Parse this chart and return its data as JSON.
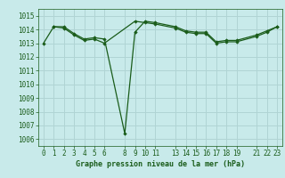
{
  "title": "Graphe pression niveau de la mer (hPa)",
  "bg_color": "#c8eaea",
  "grid_color": "#b0d4d4",
  "line_color": "#1a5c1a",
  "marker_color": "#1a5c1a",
  "xlim": [
    -0.5,
    23.5
  ],
  "ylim": [
    1005.5,
    1015.5
  ],
  "xticks": [
    0,
    1,
    2,
    3,
    4,
    5,
    6,
    8,
    9,
    10,
    11,
    13,
    14,
    15,
    16,
    17,
    18,
    19,
    21,
    22,
    23
  ],
  "yticks": [
    1006,
    1007,
    1008,
    1009,
    1010,
    1011,
    1012,
    1013,
    1014,
    1015
  ],
  "series": [
    {
      "x": [
        0,
        1,
        2,
        3,
        4,
        5,
        6,
        8,
        9,
        10,
        11,
        13,
        14,
        15,
        16,
        17,
        18,
        19,
        21,
        22,
        23
      ],
      "y": [
        1013.0,
        1014.2,
        1014.2,
        1013.7,
        1013.3,
        1013.4,
        1013.3,
        1006.4,
        1013.8,
        1014.6,
        1014.5,
        1014.2,
        1013.9,
        1013.8,
        1013.8,
        1013.1,
        1013.2,
        1013.2,
        1013.6,
        1013.9,
        1014.2
      ]
    },
    {
      "x": [
        1,
        2,
        3,
        4,
        5,
        6,
        9,
        10,
        11,
        13,
        14,
        15,
        16,
        17,
        18,
        19,
        21,
        22,
        23
      ],
      "y": [
        1014.2,
        1014.1,
        1013.6,
        1013.2,
        1013.3,
        1013.0,
        1014.6,
        1014.5,
        1014.4,
        1014.1,
        1013.8,
        1013.7,
        1013.7,
        1013.0,
        1013.1,
        1013.1,
        1013.5,
        1013.8,
        1014.2
      ]
    }
  ]
}
